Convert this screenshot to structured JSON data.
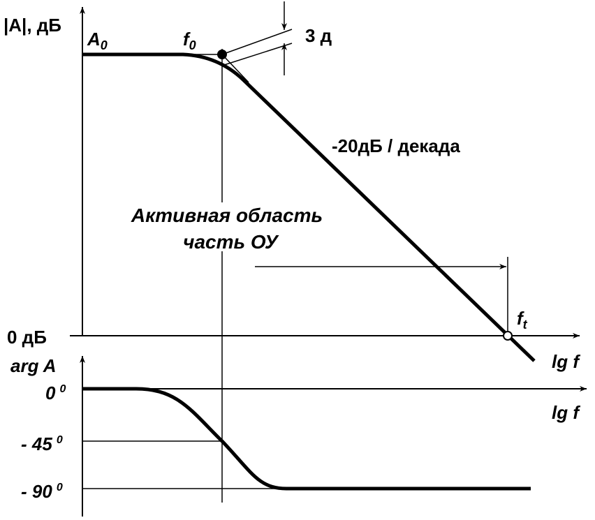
{
  "magnitude_axis": {
    "label_main": "|A|, дБ",
    "zero_label": "0 дБ",
    "x_label": "lg f"
  },
  "gain_label": {
    "main": "A",
    "sub": "0"
  },
  "corner_label": {
    "main": "f",
    "sub": "0"
  },
  "drop_label": "3 д",
  "slope_label": "-20дБ / декада",
  "region_label": [
    "Активная область",
    "часть ОУ"
  ],
  "transit_label": {
    "main": "f",
    "sub": "t"
  },
  "phase_axis": {
    "label": "arg A",
    "x_label": "lg f",
    "ticks": [
      {
        "value": "0",
        "sup": "0"
      },
      {
        "value": "- 45",
        "sup": "0"
      },
      {
        "value": "- 90",
        "sup": "0"
      }
    ]
  }
}
